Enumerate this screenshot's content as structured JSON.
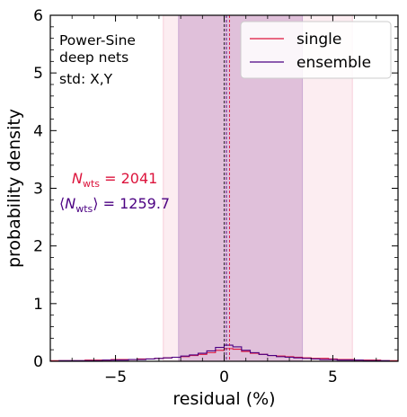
{
  "chart_data": {
    "type": "histogram",
    "xlabel": "residual (%)",
    "ylabel": "probability density",
    "xlim": [
      -8,
      8
    ],
    "ylim": [
      0,
      6
    ],
    "x_ticks": [
      -5,
      0,
      5
    ],
    "x_tick_labels": [
      "−5",
      "0",
      "5"
    ],
    "y_ticks": [
      0,
      1,
      2,
      3,
      4,
      5,
      6
    ],
    "y_tick_labels": [
      "0",
      "1",
      "2",
      "3",
      "4",
      "5",
      "6"
    ],
    "grid": false,
    "legend_position": "top-right",
    "annotations": {
      "model_line1": "Power-Sine",
      "model_line2": "deep nets",
      "std_text": "std: X,Y"
    },
    "weights_single": {
      "label": "N",
      "subscript": "wts",
      "value": " = 2041",
      "color": "#dc143c"
    },
    "weights_ensemble": {
      "label_open": "⟨",
      "label": "N",
      "subscript": "wts",
      "label_close": "⟩",
      "value": " = 1259.7",
      "color": "#4b0082"
    },
    "series": [
      {
        "name": "single",
        "color": "#dc143c",
        "median": 0.25,
        "band_68": [
          -2.8,
          5.9
        ],
        "bin_edges": [
          -8.0,
          -7.6,
          -7.2,
          -6.8,
          -6.4,
          -6.0,
          -5.6,
          -5.2,
          -4.8,
          -4.4,
          -4.0,
          -3.6,
          -3.2,
          -2.8,
          -2.4,
          -2.0,
          -1.6,
          -1.2,
          -0.8,
          -0.4,
          0.0,
          0.4,
          0.8,
          1.2,
          1.6,
          2.0,
          2.4,
          2.8,
          3.2,
          3.6,
          4.0,
          4.4,
          4.8,
          5.2,
          5.6,
          6.0,
          6.4,
          6.8,
          7.2,
          7.6,
          8.0
        ],
        "values": [
          0.01,
          0.01,
          0.01,
          0.01,
          0.02,
          0.02,
          0.02,
          0.03,
          0.03,
          0.03,
          0.04,
          0.04,
          0.05,
          0.06,
          0.07,
          0.08,
          0.1,
          0.12,
          0.15,
          0.19,
          0.22,
          0.21,
          0.17,
          0.14,
          0.12,
          0.1,
          0.09,
          0.08,
          0.07,
          0.06,
          0.05,
          0.05,
          0.04,
          0.03,
          0.03,
          0.02,
          0.02,
          0.02,
          0.01,
          0.01
        ]
      },
      {
        "name": "ensemble",
        "color": "#4b0082",
        "median": 0.1,
        "band_68": [
          -2.1,
          3.6
        ],
        "bin_edges": [
          -8.0,
          -7.6,
          -7.2,
          -6.8,
          -6.4,
          -6.0,
          -5.6,
          -5.2,
          -4.8,
          -4.4,
          -4.0,
          -3.6,
          -3.2,
          -2.8,
          -2.4,
          -2.0,
          -1.6,
          -1.2,
          -0.8,
          -0.4,
          0.0,
          0.4,
          0.8,
          1.2,
          1.6,
          2.0,
          2.4,
          2.8,
          3.2,
          3.6,
          4.0,
          4.4,
          4.8,
          5.2,
          5.6,
          6.0,
          6.4,
          6.8,
          7.2,
          7.6,
          8.0
        ],
        "values": [
          0.0,
          0.01,
          0.01,
          0.01,
          0.01,
          0.01,
          0.02,
          0.02,
          0.02,
          0.03,
          0.03,
          0.04,
          0.05,
          0.06,
          0.07,
          0.09,
          0.11,
          0.14,
          0.18,
          0.24,
          0.28,
          0.25,
          0.19,
          0.15,
          0.12,
          0.1,
          0.08,
          0.07,
          0.06,
          0.05,
          0.04,
          0.03,
          0.03,
          0.02,
          0.02,
          0.02,
          0.01,
          0.01,
          0.01,
          0.0
        ]
      }
    ]
  }
}
